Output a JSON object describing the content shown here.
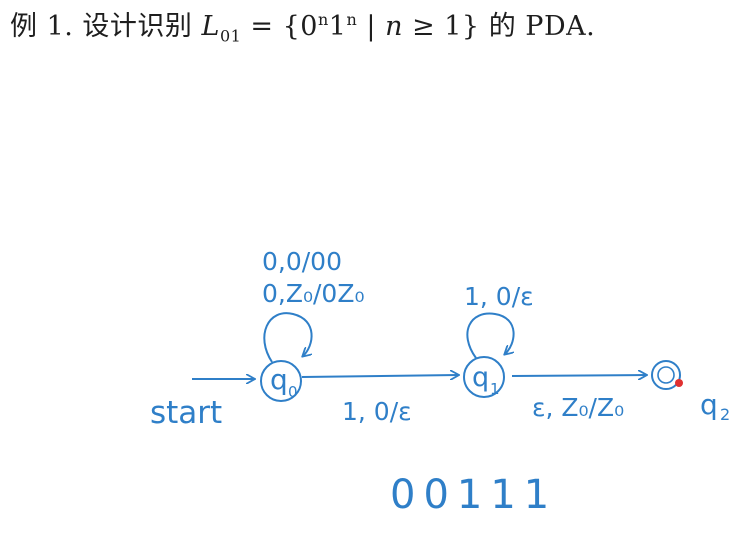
{
  "title": {
    "prefix": "例 1. 设计识别",
    "lang_var": "L",
    "lang_sub": "01",
    "set_open": " = {0",
    "exp1": "n",
    "mid": "1",
    "exp2": "n",
    "cond_bar": " | ",
    "cond_var": "n",
    "cond_rest": " ≥ 1}",
    "suffix": " 的 PDA."
  },
  "diagram": {
    "ink_color": "#2f7fc8",
    "marker_color": "#e03030",
    "start_label": "start",
    "states": [
      {
        "id": "q0",
        "label": "q",
        "sub": "0"
      },
      {
        "id": "q1",
        "label": "q",
        "sub": "1"
      },
      {
        "id": "q2",
        "label": "q",
        "sub": "2"
      }
    ],
    "loops": {
      "q0": [
        "0,0/00",
        "0,Z₀/0Z₀"
      ],
      "q1": [
        "1, 0/ε"
      ]
    },
    "transitions": {
      "q0_q1": "1, 0/ε",
      "q1_q2": "ε, Z₀/Z₀"
    },
    "input_string": "00111"
  }
}
